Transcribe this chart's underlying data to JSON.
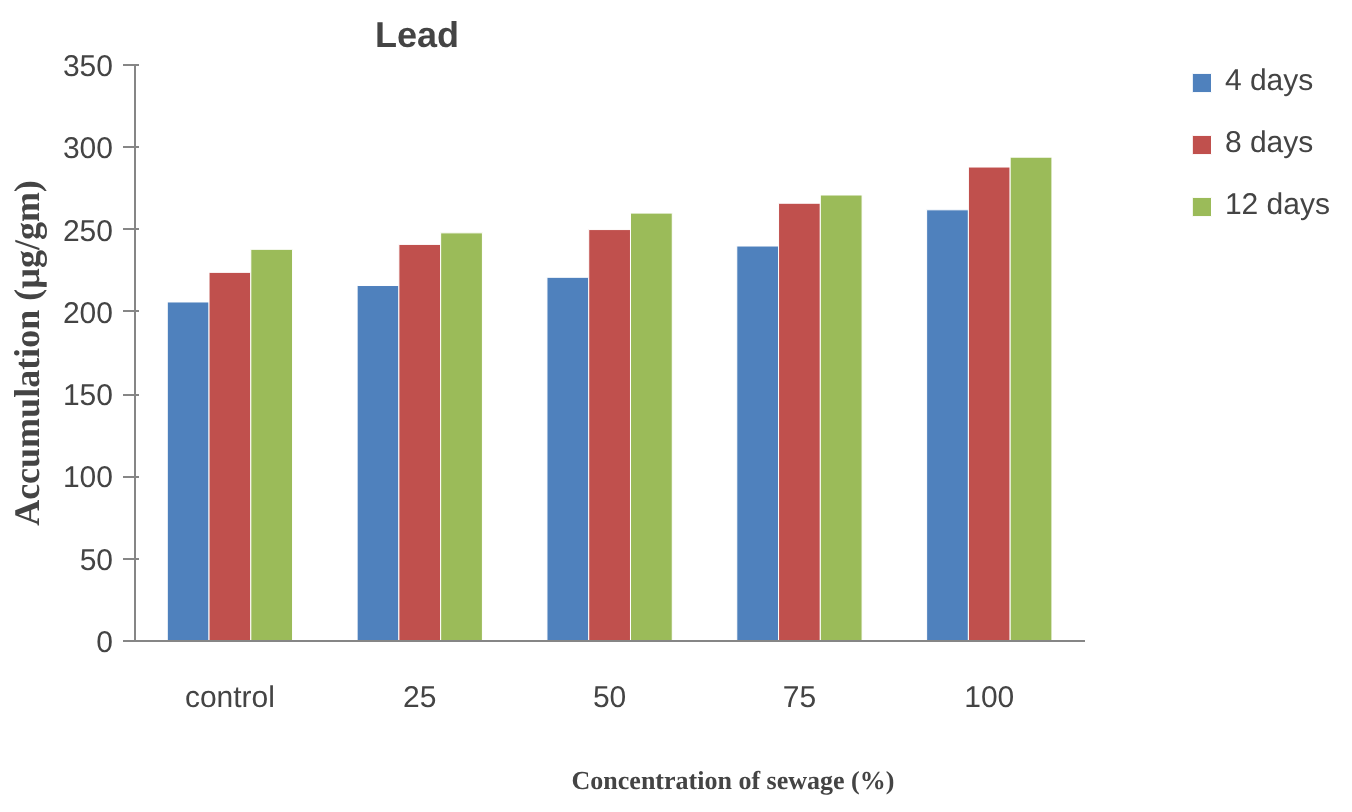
{
  "chart_data": {
    "type": "bar",
    "title": "Lead",
    "xlabel": "Concentration of sewage (%)",
    "ylabel": "Accumulation (µg/gm)",
    "categories": [
      "control",
      "25",
      "50",
      "75",
      "100"
    ],
    "series": [
      {
        "name": "4 days",
        "color": "#4f81bd",
        "values": [
          206,
          216,
          221,
          240,
          262
        ]
      },
      {
        "name": "8 days",
        "color": "#c0504d",
        "values": [
          224,
          241,
          250,
          266,
          288
        ]
      },
      {
        "name": "12 days",
        "color": "#9bbb59",
        "values": [
          238,
          248,
          260,
          271,
          294
        ]
      }
    ],
    "ylim": [
      0,
      350
    ],
    "yticks": [
      0,
      50,
      100,
      150,
      200,
      250,
      300,
      350
    ],
    "grid": false,
    "legend": "top right"
  }
}
